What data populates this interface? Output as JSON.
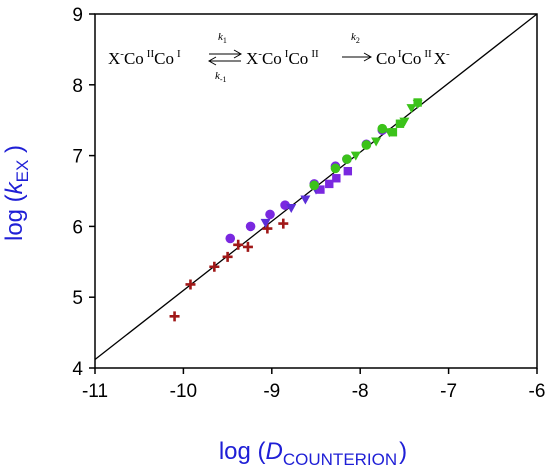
{
  "chart_data": {
    "type": "scatter",
    "xlabel": {
      "prefix": "log (",
      "variable": "D",
      "subscript": "COUNTERION",
      "suffix": ")"
    },
    "ylabel": {
      "prefix": "log (",
      "variable": "k",
      "subscript": "EX",
      "suffix": " )"
    },
    "xlim": [
      -11,
      -6
    ],
    "ylim": [
      4,
      9
    ],
    "xticks": [
      -11,
      -10,
      -9,
      -8,
      -7,
      -6
    ],
    "yticks": [
      4,
      5,
      6,
      7,
      8,
      9
    ],
    "grid": false,
    "legend": "none",
    "annotation": {
      "s1_main": "X",
      "s1_sup": "-",
      "s1_co": "Co",
      "s1_ox": "II",
      "s1_co2": "Co",
      "s1_ox2": "I",
      "k1_main": "k",
      "k1_sub": "1",
      "km1_main": "k",
      "km1_sub": "-1",
      "s2_main": "X",
      "s2_sup": "-",
      "s2_co": "Co",
      "s2_ox": "I",
      "s2_co2": "Co",
      "s2_ox2": "II",
      "k2_main": "k",
      "k2_sub": "2",
      "s3_co": "Co",
      "s3_ox": "I",
      "s3_co2": "Co",
      "s3_ox2": "II",
      "s3_x": "X",
      "s3_sup": "-"
    },
    "fit_line": {
      "x": [
        -11,
        -6
      ],
      "y": [
        4.12,
        9.0
      ]
    },
    "series": [
      {
        "marker": "plus",
        "color": "#a01818",
        "points": [
          [
            -10.1,
            4.73
          ],
          [
            -9.92,
            5.18
          ],
          [
            -9.65,
            5.43
          ],
          [
            -9.5,
            5.57
          ],
          [
            -9.38,
            5.74
          ],
          [
            -9.27,
            5.71
          ],
          [
            -9.05,
            5.97
          ],
          [
            -8.87,
            6.04
          ]
        ]
      },
      {
        "marker": "circle",
        "color": "#7a28e0",
        "points": [
          [
            -9.47,
            5.83
          ],
          [
            -9.24,
            6.0
          ],
          [
            -9.02,
            6.17
          ],
          [
            -8.85,
            6.3
          ],
          [
            -8.52,
            6.6
          ],
          [
            -8.28,
            6.85
          ],
          [
            -8.15,
            6.95
          ],
          [
            -7.93,
            7.16
          ],
          [
            -7.75,
            7.36
          ]
        ]
      },
      {
        "marker": "triangle-down",
        "color": "#5b2ed8",
        "points": [
          [
            -9.07,
            6.05
          ],
          [
            -8.78,
            6.26
          ],
          [
            -8.62,
            6.38
          ],
          [
            -8.5,
            6.52
          ]
        ]
      },
      {
        "marker": "square",
        "color": "#7a28e0",
        "points": [
          [
            -8.45,
            6.52
          ],
          [
            -8.35,
            6.6
          ],
          [
            -8.27,
            6.68
          ],
          [
            -8.14,
            6.78
          ]
        ]
      },
      {
        "marker": "circle",
        "color": "#3bc21a",
        "points": [
          [
            -8.52,
            6.58
          ],
          [
            -8.28,
            6.82
          ],
          [
            -8.15,
            6.95
          ],
          [
            -7.93,
            7.15
          ],
          [
            -7.75,
            7.38
          ]
        ]
      },
      {
        "marker": "triangle-down",
        "color": "#3bc21a",
        "points": [
          [
            -8.05,
            7.0
          ],
          [
            -7.82,
            7.2
          ],
          [
            -7.67,
            7.33
          ],
          [
            -7.5,
            7.48
          ],
          [
            -7.42,
            7.67
          ],
          [
            -7.35,
            7.73
          ]
        ]
      },
      {
        "marker": "square",
        "color": "#3bc21a",
        "points": [
          [
            -7.63,
            7.33
          ],
          [
            -7.55,
            7.45
          ],
          [
            -7.35,
            7.75
          ]
        ]
      }
    ]
  }
}
